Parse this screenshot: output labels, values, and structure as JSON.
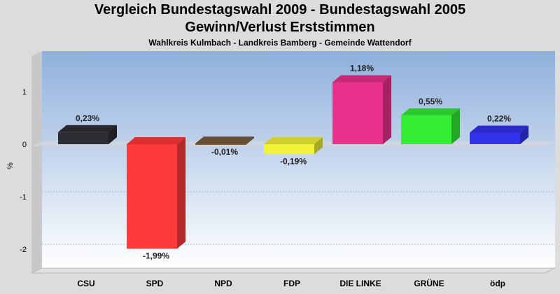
{
  "header": {
    "title_line1": "Vergleich Bundestagswahl 2009 - Bundestagswahl 2005",
    "title_line2": "Gewinn/Verlust Erststimmen",
    "subtitle": "Wahlkreis Kulmbach - Landkreis Bamberg - Gemeinde Wattendorf"
  },
  "chart_data": {
    "type": "bar",
    "title": "Vergleich Bundestagswahl 2009 - Bundestagswahl 2005 / Gewinn/Verlust Erststimmen",
    "subtitle": "Wahlkreis Kulmbach - Landkreis Bamberg - Gemeinde Wattendorf",
    "xlabel": "",
    "ylabel": "%",
    "ylim": [
      -2.45,
      1.75
    ],
    "yticks": [
      1,
      0,
      -1,
      -2
    ],
    "ytick_labels": [
      "1",
      "0",
      "-1",
      "-2"
    ],
    "grid": true,
    "categories": [
      "CSU",
      "SPD",
      "NPD",
      "FDP",
      "DIE LINKE",
      "GRÜNE",
      "ödp"
    ],
    "values": [
      0.23,
      -1.99,
      -0.01,
      -0.19,
      1.18,
      0.55,
      0.22
    ],
    "value_labels": [
      "0,23%",
      "-1,99%",
      "-0,01%",
      "-0,19%",
      "1,18%",
      "0,55%",
      "0,22%"
    ],
    "colors": [
      "#2d2d33",
      "#ff3a3a",
      "#7a5a3a",
      "#f2f23a",
      "#e8308c",
      "#33ee33",
      "#3333ee"
    ]
  }
}
